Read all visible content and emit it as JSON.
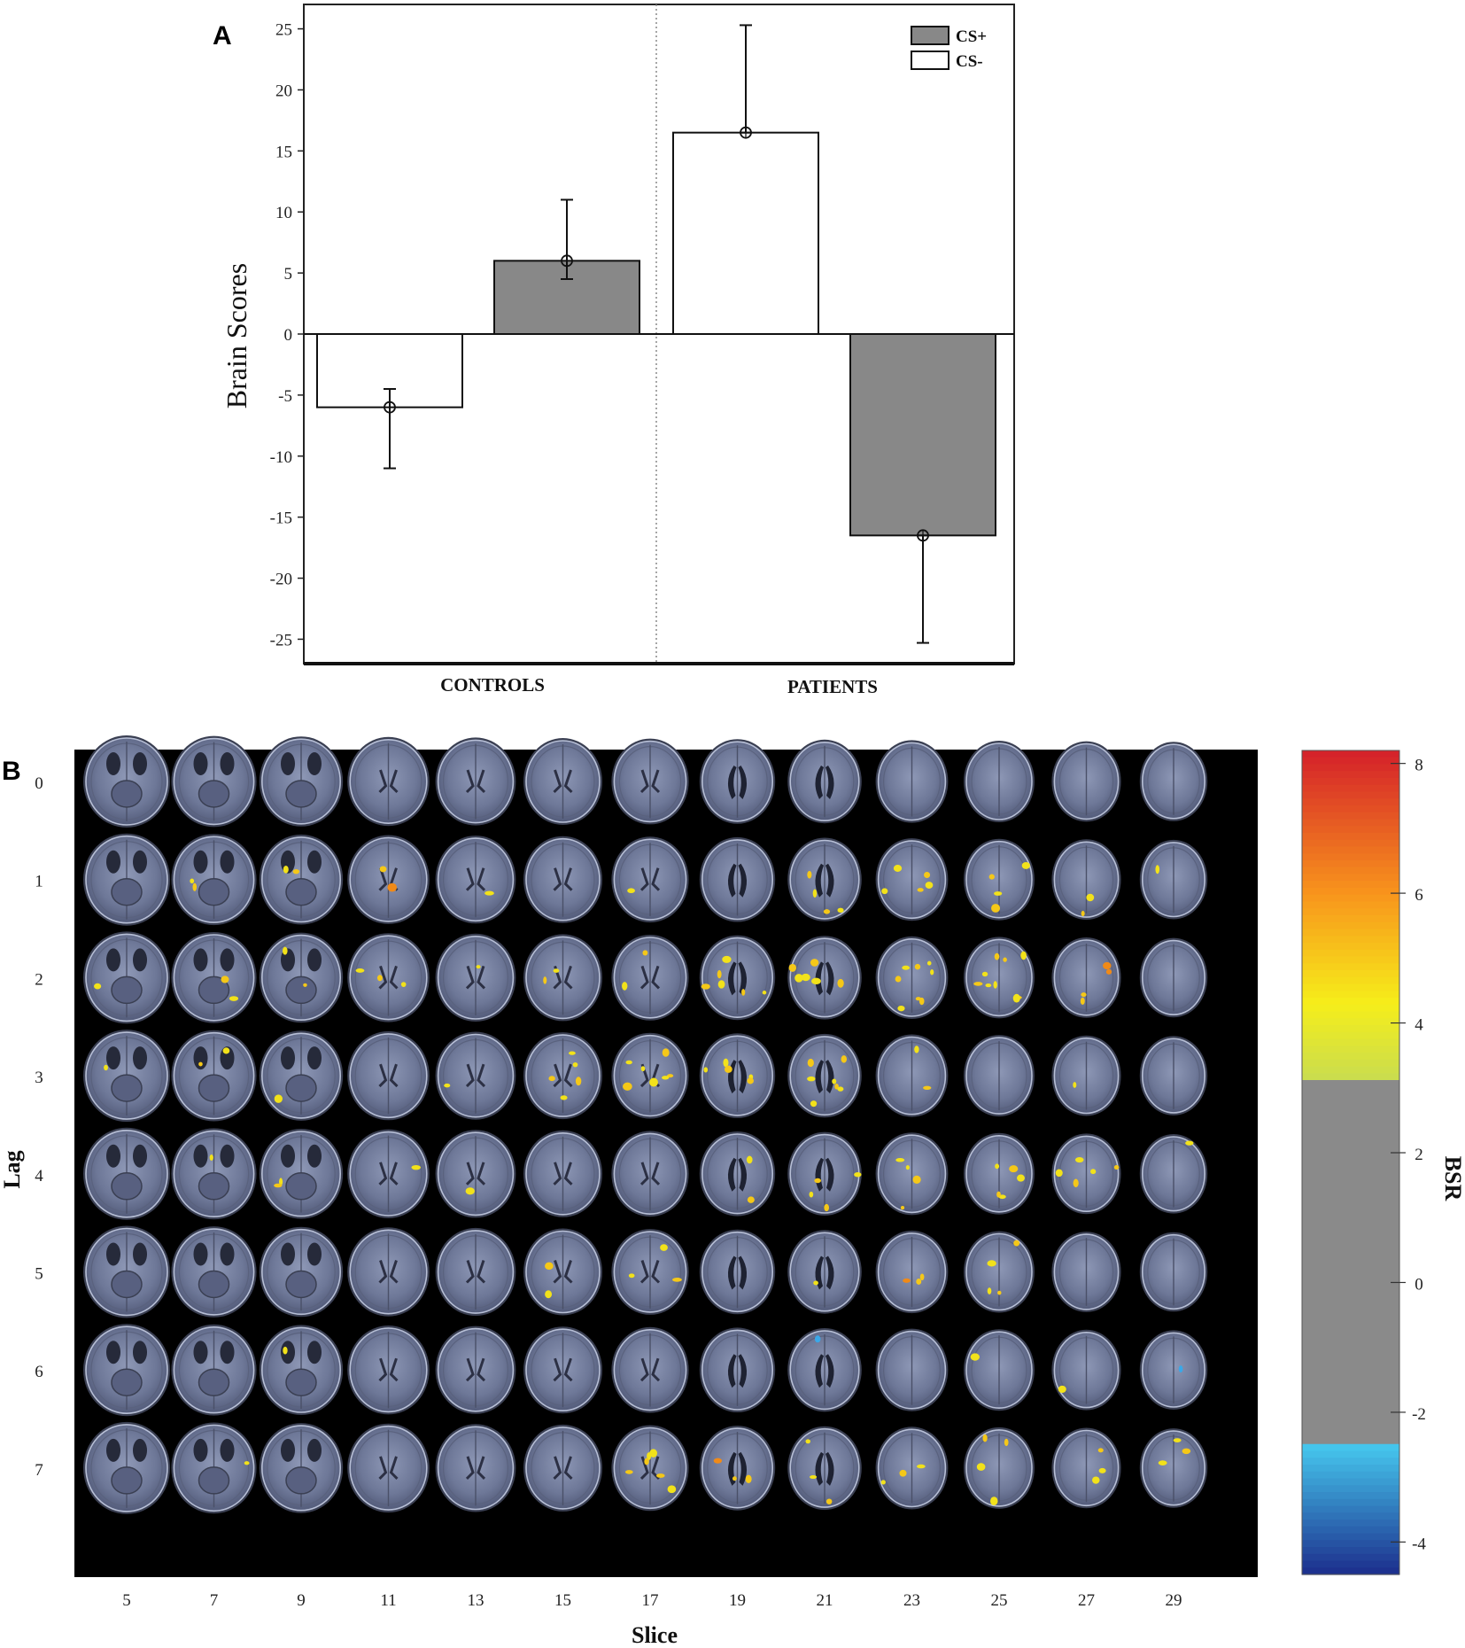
{
  "panels": {
    "a_label": "A",
    "b_label": "B"
  },
  "chart_data": [
    {
      "type": "bar",
      "title": "",
      "ylabel": "Brain Scores",
      "xlabel": "",
      "ylim": [
        -27,
        27
      ],
      "yticks": [
        25,
        20,
        15,
        10,
        5,
        0,
        -5,
        -10,
        -15,
        -20,
        -25
      ],
      "groups": [
        "CONTROLS",
        "PATIENTS"
      ],
      "legend": {
        "position": "top-right",
        "entries": [
          "CS+",
          "CS-"
        ]
      },
      "colors": {
        "CS+": "#888888",
        "CS-": "#ffffff"
      },
      "bars": [
        {
          "group": "CONTROLS",
          "series": "CS-",
          "value": -6,
          "err_low": -11,
          "err_high": -4.5
        },
        {
          "group": "CONTROLS",
          "series": "CS+",
          "value": 6,
          "err_low": 4.5,
          "err_high": 11
        },
        {
          "group": "PATIENTS",
          "series": "CS-",
          "value": 16.5,
          "err_low": 16.5,
          "err_high": 25.3
        },
        {
          "group": "PATIENTS",
          "series": "CS+",
          "value": -16.5,
          "err_low": -25.3,
          "err_high": -16.5
        }
      ]
    },
    {
      "type": "heatmap",
      "description_kind": "brain-slice-montage",
      "xlabel": "Slice",
      "ylabel": "Lag",
      "x_ticks": [
        "5",
        "7",
        "9",
        "11",
        "13",
        "15",
        "17",
        "19",
        "21",
        "23",
        "25",
        "27",
        "29"
      ],
      "y_ticks": [
        "0",
        "1",
        "2",
        "3",
        "4",
        "5",
        "6",
        "7"
      ],
      "colorbar": {
        "label": "BSR",
        "range": [
          -4.5,
          8.2
        ],
        "ticks": [
          8,
          6,
          4,
          2,
          0,
          -2,
          -4
        ],
        "threshold_low": -2.5,
        "threshold_high": 3.1,
        "colors": {
          "mid": "#8a8a8a",
          "low_end": "#1c2e8c",
          "low_start": "#46c8ee",
          "high_start": "#c8dc50",
          "high_yellow": "#f6ee1a",
          "high_orange": "#f8941c",
          "high_end": "#d4202a"
        }
      },
      "activations": [
        {
          "lag": 1,
          "slice": 7,
          "count": 2,
          "color": "yellow"
        },
        {
          "lag": 1,
          "slice": 9,
          "count": 2,
          "color": "yellow"
        },
        {
          "lag": 1,
          "slice": 11,
          "count": 2,
          "color": "mixed"
        },
        {
          "lag": 1,
          "slice": 13,
          "count": 1,
          "color": "yellow"
        },
        {
          "lag": 1,
          "slice": 17,
          "count": 1,
          "color": "yellow"
        },
        {
          "lag": 1,
          "slice": 21,
          "count": 4,
          "color": "yellow"
        },
        {
          "lag": 1,
          "slice": 23,
          "count": 5,
          "color": "yellow"
        },
        {
          "lag": 1,
          "slice": 25,
          "count": 4,
          "color": "yellow"
        },
        {
          "lag": 1,
          "slice": 27,
          "count": 2,
          "color": "yellow"
        },
        {
          "lag": 1,
          "slice": 29,
          "count": 1,
          "color": "yellow"
        },
        {
          "lag": 2,
          "slice": 5,
          "count": 1,
          "color": "yellow"
        },
        {
          "lag": 2,
          "slice": 7,
          "count": 2,
          "color": "yellow"
        },
        {
          "lag": 2,
          "slice": 9,
          "count": 2,
          "color": "yellow"
        },
        {
          "lag": 2,
          "slice": 11,
          "count": 3,
          "color": "yellow"
        },
        {
          "lag": 2,
          "slice": 13,
          "count": 1,
          "color": "yellow"
        },
        {
          "lag": 2,
          "slice": 15,
          "count": 2,
          "color": "yellow"
        },
        {
          "lag": 2,
          "slice": 17,
          "count": 2,
          "color": "yellow"
        },
        {
          "lag": 2,
          "slice": 19,
          "count": 6,
          "color": "yellow"
        },
        {
          "lag": 2,
          "slice": 21,
          "count": 6,
          "color": "yellow"
        },
        {
          "lag": 2,
          "slice": 23,
          "count": 8,
          "color": "yellow"
        },
        {
          "lag": 2,
          "slice": 25,
          "count": 9,
          "color": "yellow"
        },
        {
          "lag": 2,
          "slice": 27,
          "count": 4,
          "color": "mixed"
        },
        {
          "lag": 3,
          "slice": 5,
          "count": 1,
          "color": "yellow"
        },
        {
          "lag": 3,
          "slice": 7,
          "count": 2,
          "color": "yellow"
        },
        {
          "lag": 3,
          "slice": 9,
          "count": 1,
          "color": "yellow"
        },
        {
          "lag": 3,
          "slice": 13,
          "count": 1,
          "color": "yellow"
        },
        {
          "lag": 3,
          "slice": 15,
          "count": 5,
          "color": "yellow"
        },
        {
          "lag": 3,
          "slice": 17,
          "count": 7,
          "color": "yellow"
        },
        {
          "lag": 3,
          "slice": 19,
          "count": 5,
          "color": "yellow"
        },
        {
          "lag": 3,
          "slice": 21,
          "count": 7,
          "color": "yellow"
        },
        {
          "lag": 3,
          "slice": 23,
          "count": 2,
          "color": "yellow"
        },
        {
          "lag": 3,
          "slice": 27,
          "count": 1,
          "color": "yellow"
        },
        {
          "lag": 4,
          "slice": 7,
          "count": 1,
          "color": "yellow"
        },
        {
          "lag": 4,
          "slice": 9,
          "count": 2,
          "color": "yellow"
        },
        {
          "lag": 4,
          "slice": 11,
          "count": 1,
          "color": "yellow"
        },
        {
          "lag": 4,
          "slice": 13,
          "count": 1,
          "color": "yellow"
        },
        {
          "lag": 4,
          "slice": 19,
          "count": 2,
          "color": "yellow"
        },
        {
          "lag": 4,
          "slice": 21,
          "count": 4,
          "color": "yellow"
        },
        {
          "lag": 4,
          "slice": 23,
          "count": 4,
          "color": "yellow"
        },
        {
          "lag": 4,
          "slice": 25,
          "count": 5,
          "color": "yellow"
        },
        {
          "lag": 4,
          "slice": 27,
          "count": 5,
          "color": "yellow"
        },
        {
          "lag": 4,
          "slice": 29,
          "count": 1,
          "color": "yellow"
        },
        {
          "lag": 5,
          "slice": 15,
          "count": 2,
          "color": "yellow"
        },
        {
          "lag": 5,
          "slice": 17,
          "count": 3,
          "color": "yellow"
        },
        {
          "lag": 5,
          "slice": 21,
          "count": 1,
          "color": "yellow"
        },
        {
          "lag": 5,
          "slice": 23,
          "count": 3,
          "color": "mixed"
        },
        {
          "lag": 5,
          "slice": 25,
          "count": 4,
          "color": "yellow"
        },
        {
          "lag": 6,
          "slice": 9,
          "count": 1,
          "color": "yellow"
        },
        {
          "lag": 6,
          "slice": 21,
          "count": 1,
          "color": "blue"
        },
        {
          "lag": 6,
          "slice": 25,
          "count": 1,
          "color": "yellow"
        },
        {
          "lag": 6,
          "slice": 27,
          "count": 1,
          "color": "yellow"
        },
        {
          "lag": 6,
          "slice": 29,
          "count": 1,
          "color": "blue"
        },
        {
          "lag": 7,
          "slice": 7,
          "count": 1,
          "color": "yellow"
        },
        {
          "lag": 7,
          "slice": 17,
          "count": 6,
          "color": "yellow"
        },
        {
          "lag": 7,
          "slice": 19,
          "count": 3,
          "color": "mixed"
        },
        {
          "lag": 7,
          "slice": 21,
          "count": 3,
          "color": "yellow"
        },
        {
          "lag": 7,
          "slice": 23,
          "count": 3,
          "color": "yellow"
        },
        {
          "lag": 7,
          "slice": 25,
          "count": 4,
          "color": "yellow"
        },
        {
          "lag": 7,
          "slice": 27,
          "count": 3,
          "color": "yellow"
        },
        {
          "lag": 7,
          "slice": 29,
          "count": 3,
          "color": "yellow"
        }
      ]
    }
  ]
}
